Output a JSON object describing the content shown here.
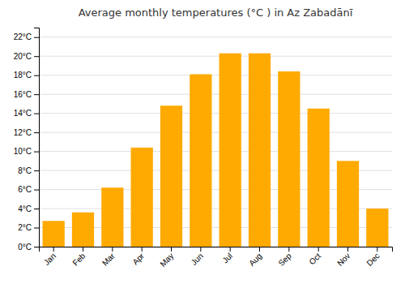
{
  "chart_data": {
    "type": "bar",
    "title": "Average monthly temperatures (°C ) in Az Zabadānī",
    "categories": [
      "Jan",
      "Feb",
      "Mar",
      "Apr",
      "May",
      "Jun",
      "Jul",
      "Aug",
      "Sep",
      "Oct",
      "Nov",
      "Dec"
    ],
    "values": [
      2.7,
      3.6,
      6.2,
      10.4,
      14.8,
      18.1,
      20.3,
      20.3,
      18.4,
      14.5,
      9.0,
      4.0
    ],
    "color": "#FFAA00",
    "ylim": [
      0,
      23
    ],
    "yticks": [
      {
        "value": 0,
        "label": "0°C"
      },
      {
        "value": 2,
        "label": "2°C"
      },
      {
        "value": 4,
        "label": "4°C"
      },
      {
        "value": 6,
        "label": "6°C"
      },
      {
        "value": 8,
        "label": "8°C"
      },
      {
        "value": 10,
        "label": "10°C"
      },
      {
        "value": 12,
        "label": "12°C"
      },
      {
        "value": 14,
        "label": "14°C"
      },
      {
        "value": 16,
        "label": "16°C"
      },
      {
        "value": 18,
        "label": "18°C"
      },
      {
        "value": 20,
        "label": "20°C"
      },
      {
        "value": 22,
        "label": "22°C"
      }
    ],
    "grid": true
  }
}
